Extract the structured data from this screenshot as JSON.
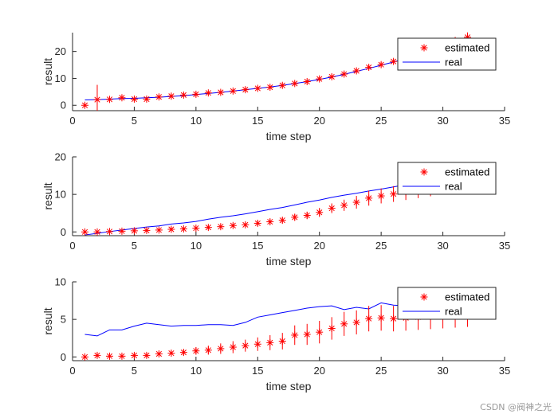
{
  "watermark": "CSDN @阀神之光",
  "colors": {
    "estimated": "#ff0000",
    "real": "#0000ff",
    "axis": "#262626"
  },
  "chart_data": [
    {
      "type": "line",
      "xlabel": "time step",
      "ylabel": "result",
      "xlim": [
        0,
        35
      ],
      "ylim": [
        -2,
        27
      ],
      "xticks": [
        0,
        5,
        10,
        15,
        20,
        25,
        30,
        35
      ],
      "yticks": [
        0,
        10,
        20
      ],
      "legend": {
        "position": "top-right",
        "entries": [
          "estimated",
          "real"
        ]
      },
      "series": [
        {
          "name": "estimated",
          "marker": "asterisk",
          "x": [
            1,
            2,
            3,
            4,
            5,
            6,
            7,
            8,
            9,
            10,
            11,
            12,
            13,
            14,
            15,
            16,
            17,
            18,
            19,
            20,
            21,
            22,
            23,
            24,
            25,
            26,
            27,
            28,
            29,
            30,
            31,
            32
          ],
          "y": [
            0,
            2.1,
            2.2,
            2.8,
            2.3,
            2.3,
            3.1,
            3.4,
            3.8,
            4.1,
            4.6,
            4.8,
            5.3,
            5.8,
            6.3,
            6.7,
            7.4,
            8.1,
            8.8,
            9.8,
            10.6,
            11.6,
            12.8,
            14.1,
            15.1,
            16.3,
            17.4,
            18.6,
            19.9,
            21.5,
            23.8,
            25.3
          ],
          "err": [
            0,
            5.5,
            1.0,
            1.0,
            0.9,
            0.9,
            0.8,
            0.8,
            0.7,
            0.7,
            0.7,
            0.7,
            0.7,
            0.7,
            0.7,
            0.7,
            0.7,
            0.7,
            0.7,
            0.8,
            0.8,
            0.8,
            0.8,
            0.9,
            0.9,
            0.9,
            0.9,
            1.0,
            1.0,
            1.2,
            1.6,
            1.8
          ]
        },
        {
          "name": "real",
          "x": [
            1,
            2,
            3,
            4,
            5,
            6,
            7,
            8,
            9,
            10,
            11,
            12,
            13,
            14,
            15,
            16,
            17,
            18,
            19,
            20,
            21,
            22,
            23,
            24,
            25,
            26,
            27,
            28,
            29,
            30,
            31,
            32
          ],
          "y": [
            2.0,
            2.1,
            2.3,
            2.5,
            2.6,
            2.8,
            3.0,
            3.3,
            3.6,
            4.0,
            4.4,
            4.8,
            5.3,
            5.8,
            6.3,
            6.8,
            7.4,
            8.1,
            8.8,
            9.6,
            10.5,
            11.5,
            12.6,
            13.7,
            14.9,
            16.1,
            17.4,
            18.8,
            20.2,
            21.7,
            23.2,
            24.8
          ]
        }
      ]
    },
    {
      "type": "line",
      "xlabel": "time step",
      "ylabel": "result",
      "xlim": [
        0,
        35
      ],
      "ylim": [
        -1,
        20
      ],
      "xticks": [
        0,
        5,
        10,
        15,
        20,
        25,
        30,
        35
      ],
      "yticks": [
        0,
        10,
        20
      ],
      "legend": {
        "position": "top-right",
        "entries": [
          "estimated",
          "real"
        ]
      },
      "series": [
        {
          "name": "estimated",
          "marker": "asterisk",
          "x": [
            1,
            2,
            3,
            4,
            5,
            6,
            7,
            8,
            9,
            10,
            11,
            12,
            13,
            14,
            15,
            16,
            17,
            18,
            19,
            20,
            21,
            22,
            23,
            24,
            25,
            26,
            27,
            28,
            29,
            30,
            31,
            32
          ],
          "y": [
            0,
            0,
            0.1,
            0.2,
            0.3,
            0.4,
            0.5,
            0.7,
            0.8,
            1.0,
            1.2,
            1.4,
            1.7,
            1.9,
            2.3,
            2.7,
            3.1,
            3.9,
            4.4,
            5.2,
            6.3,
            7.1,
            7.9,
            9.0,
            9.6,
            10.1,
            10.7,
            11.3,
            11.9,
            12.5,
            13.1,
            13.7
          ],
          "err": [
            0,
            0.2,
            0.2,
            0.3,
            0.3,
            0.3,
            0.3,
            0.4,
            0.4,
            0.4,
            0.5,
            0.5,
            0.5,
            0.6,
            0.7,
            0.7,
            0.8,
            0.9,
            1.0,
            1.2,
            1.3,
            1.5,
            1.7,
            2.0,
            2.0,
            2.1,
            2.2,
            2.3,
            2.4,
            2.5,
            2.6,
            2.7
          ]
        },
        {
          "name": "real",
          "x": [
            1,
            2,
            3,
            4,
            5,
            6,
            7,
            8,
            9,
            10,
            11,
            12,
            13,
            14,
            15,
            16,
            17,
            18,
            19,
            20,
            21,
            22,
            23,
            24,
            25,
            26,
            27,
            28,
            29,
            30,
            31,
            32
          ],
          "y": [
            -0.8,
            -0.4,
            0.1,
            0.5,
            0.9,
            1.3,
            1.6,
            2.1,
            2.4,
            2.8,
            3.4,
            3.9,
            4.3,
            4.8,
            5.4,
            6.0,
            6.5,
            7.2,
            7.9,
            8.5,
            9.2,
            9.8,
            10.3,
            10.9,
            11.4,
            12.0,
            12.6,
            13.1,
            13.7,
            14.3,
            14.9,
            15.4
          ]
        }
      ]
    },
    {
      "type": "line",
      "xlabel": "time step",
      "ylabel": "result",
      "xlim": [
        0,
        35
      ],
      "ylim": [
        -0.5,
        10
      ],
      "xticks": [
        0,
        5,
        10,
        15,
        20,
        25,
        30,
        35
      ],
      "yticks": [
        0,
        5,
        10
      ],
      "legend": {
        "position": "top-right",
        "entries": [
          "estimated",
          "real"
        ]
      },
      "series": [
        {
          "name": "estimated",
          "marker": "asterisk",
          "x": [
            1,
            2,
            3,
            4,
            5,
            6,
            7,
            8,
            9,
            10,
            11,
            12,
            13,
            14,
            15,
            16,
            17,
            18,
            19,
            20,
            21,
            22,
            23,
            24,
            25,
            26,
            27,
            28,
            29,
            30,
            31,
            32
          ],
          "y": [
            0,
            0.2,
            0.1,
            0.1,
            0.2,
            0.2,
            0.4,
            0.5,
            0.6,
            0.8,
            0.9,
            1.1,
            1.3,
            1.5,
            1.7,
            1.9,
            2.1,
            2.9,
            3.0,
            3.3,
            3.8,
            4.4,
            4.6,
            5.1,
            5.2,
            5.1,
            5.2,
            5.3,
            5.4,
            5.5,
            5.6,
            5.7
          ],
          "err": [
            0,
            0.2,
            0.2,
            0.2,
            0.2,
            0.3,
            0.3,
            0.3,
            0.4,
            0.5,
            0.6,
            0.7,
            0.8,
            0.8,
            0.9,
            1.0,
            1.1,
            1.3,
            1.4,
            1.5,
            1.5,
            1.6,
            1.6,
            1.7,
            1.7,
            1.7,
            1.7,
            1.7,
            1.7,
            1.7,
            1.7,
            1.7
          ]
        },
        {
          "name": "real",
          "x": [
            1,
            2,
            3,
            4,
            5,
            6,
            7,
            8,
            9,
            10,
            11,
            12,
            13,
            14,
            15,
            16,
            17,
            18,
            19,
            20,
            21,
            22,
            23,
            24,
            25,
            26,
            27,
            28,
            29,
            30,
            31,
            32
          ],
          "y": [
            3.0,
            2.8,
            3.6,
            3.6,
            4.1,
            4.5,
            4.3,
            4.1,
            4.2,
            4.2,
            4.3,
            4.3,
            4.2,
            4.6,
            5.3,
            5.6,
            5.9,
            6.2,
            6.5,
            6.7,
            6.8,
            6.3,
            6.6,
            6.4,
            7.2,
            6.9,
            6.8,
            6.9,
            7.0,
            7.0,
            7.1,
            7.2
          ]
        }
      ]
    }
  ]
}
